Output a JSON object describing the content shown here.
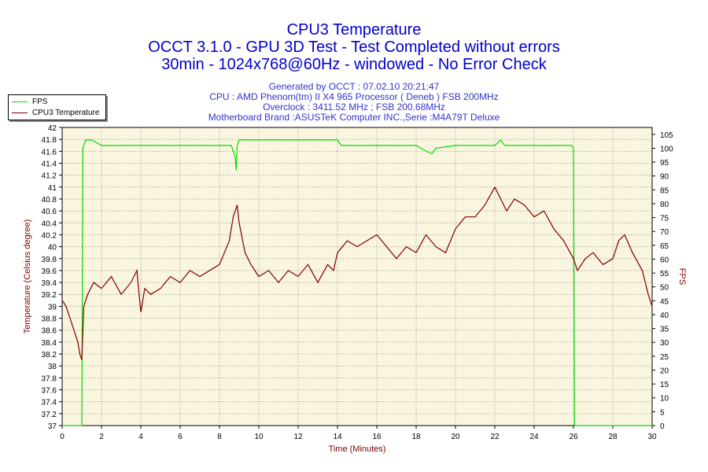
{
  "header": {
    "title": "CPU3 Temperature",
    "subtitle1": "OCCT 3.1.0 - GPU 3D Test - Test Completed without errors",
    "subtitle2": "30min - 1024x768@60Hz - windowed - No Error Check",
    "info": [
      "Generated by OCCT : 07.02.10 20:21:47",
      "CPU : AMD Phenom(tm) II X4 965 Processor ( Deneb ) FSB 200MHz",
      "Overclock : 3411.52 MHz ; FSB 200.68MHz",
      "Motherboard Brand :ASUSTeK Computer INC.,Serie :M4A79T Deluxe"
    ]
  },
  "colors": {
    "fps": "#00dd00",
    "temp": "#800000",
    "plot_bg": "#faf5de",
    "grid": "#9a9a9a",
    "axis_text": "#800000"
  },
  "chart_data": {
    "type": "line",
    "xlabel": "Time (Minutes)",
    "ylabel": "Temperature (Celsius degree)",
    "y2label": "FPS",
    "xlim": [
      0,
      30
    ],
    "ylim": [
      37,
      42
    ],
    "y2lim": [
      0,
      107.5
    ],
    "x_ticks": [
      "0",
      "2",
      "4",
      "6",
      "8",
      "10",
      "12",
      "14",
      "16",
      "18",
      "20",
      "22",
      "24",
      "26",
      "28",
      "30"
    ],
    "y_ticks": [
      "37",
      "37.2",
      "37.4",
      "37.6",
      "37.8",
      "38",
      "38.2",
      "38.4",
      "38.6",
      "38.8",
      "39",
      "39.2",
      "39.4",
      "39.6",
      "39.8",
      "40",
      "40.2",
      "40.4",
      "40.6",
      "40.8",
      "41",
      "41.2",
      "41.4",
      "41.6",
      "41.8",
      "42"
    ],
    "y2_ticks": [
      "0",
      "5",
      "10",
      "15",
      "20",
      "25",
      "30",
      "35",
      "40",
      "45",
      "50",
      "55",
      "60",
      "65",
      "70",
      "75",
      "80",
      "85",
      "90",
      "95",
      "100",
      "105"
    ],
    "grid": true,
    "legend": "top-left",
    "series": [
      {
        "name": "FPS",
        "axis": "right",
        "x": [
          0,
          1.0,
          1.05,
          1.2,
          1.5,
          2.0,
          4,
          6,
          8,
          8.6,
          8.8,
          8.85,
          8.9,
          9.0,
          9.3,
          10,
          12,
          14,
          14.2,
          16,
          18,
          18.5,
          18.8,
          19,
          20,
          22,
          22.3,
          22.5,
          24,
          25.5,
          25.9,
          26.0,
          26.05,
          30
        ],
        "values": [
          0,
          0,
          100,
          103,
          103,
          101,
          101,
          101,
          101,
          101,
          97,
          92,
          101,
          103,
          103,
          103,
          103,
          103,
          101,
          101,
          101,
          99,
          98,
          100,
          101,
          101,
          103,
          101,
          101,
          101,
          101,
          100,
          0,
          0
        ]
      },
      {
        "name": "CPU3 Temperature",
        "axis": "left",
        "x": [
          0,
          0.2,
          0.4,
          0.6,
          0.8,
          0.9,
          1.0,
          1.1,
          1.3,
          1.6,
          2.0,
          2.5,
          3.0,
          3.5,
          3.8,
          4.0,
          4.2,
          4.5,
          5.0,
          5.5,
          6.0,
          6.5,
          7.0,
          7.5,
          8.0,
          8.5,
          8.7,
          8.9,
          9.0,
          9.3,
          9.6,
          10.0,
          10.5,
          11.0,
          11.5,
          12.0,
          12.5,
          13.0,
          13.5,
          13.8,
          14.0,
          14.5,
          15.0,
          15.5,
          16.0,
          16.5,
          17.0,
          17.5,
          18.0,
          18.5,
          19.0,
          19.5,
          20.0,
          20.5,
          21.0,
          21.5,
          22.0,
          22.3,
          22.6,
          23.0,
          23.5,
          24.0,
          24.5,
          25.0,
          25.5,
          26.0,
          26.2,
          26.6,
          27.0,
          27.5,
          28.0,
          28.3,
          28.6,
          29.0,
          29.5,
          29.8,
          30.0
        ],
        "values": [
          39.1,
          39.0,
          38.8,
          38.6,
          38.4,
          38.2,
          38.1,
          39.0,
          39.2,
          39.4,
          39.3,
          39.5,
          39.2,
          39.4,
          39.6,
          38.9,
          39.3,
          39.2,
          39.3,
          39.5,
          39.4,
          39.6,
          39.5,
          39.6,
          39.7,
          40.1,
          40.5,
          40.7,
          40.4,
          39.9,
          39.7,
          39.5,
          39.6,
          39.4,
          39.6,
          39.5,
          39.7,
          39.4,
          39.7,
          39.6,
          39.9,
          40.1,
          40.0,
          40.1,
          40.2,
          40.0,
          39.8,
          40.0,
          39.9,
          40.2,
          40.0,
          39.9,
          40.3,
          40.5,
          40.5,
          40.7,
          41.0,
          40.8,
          40.6,
          40.8,
          40.7,
          40.5,
          40.6,
          40.3,
          40.1,
          39.8,
          39.6,
          39.8,
          39.9,
          39.7,
          39.8,
          40.1,
          40.2,
          39.9,
          39.6,
          39.2,
          39.0
        ]
      }
    ]
  }
}
